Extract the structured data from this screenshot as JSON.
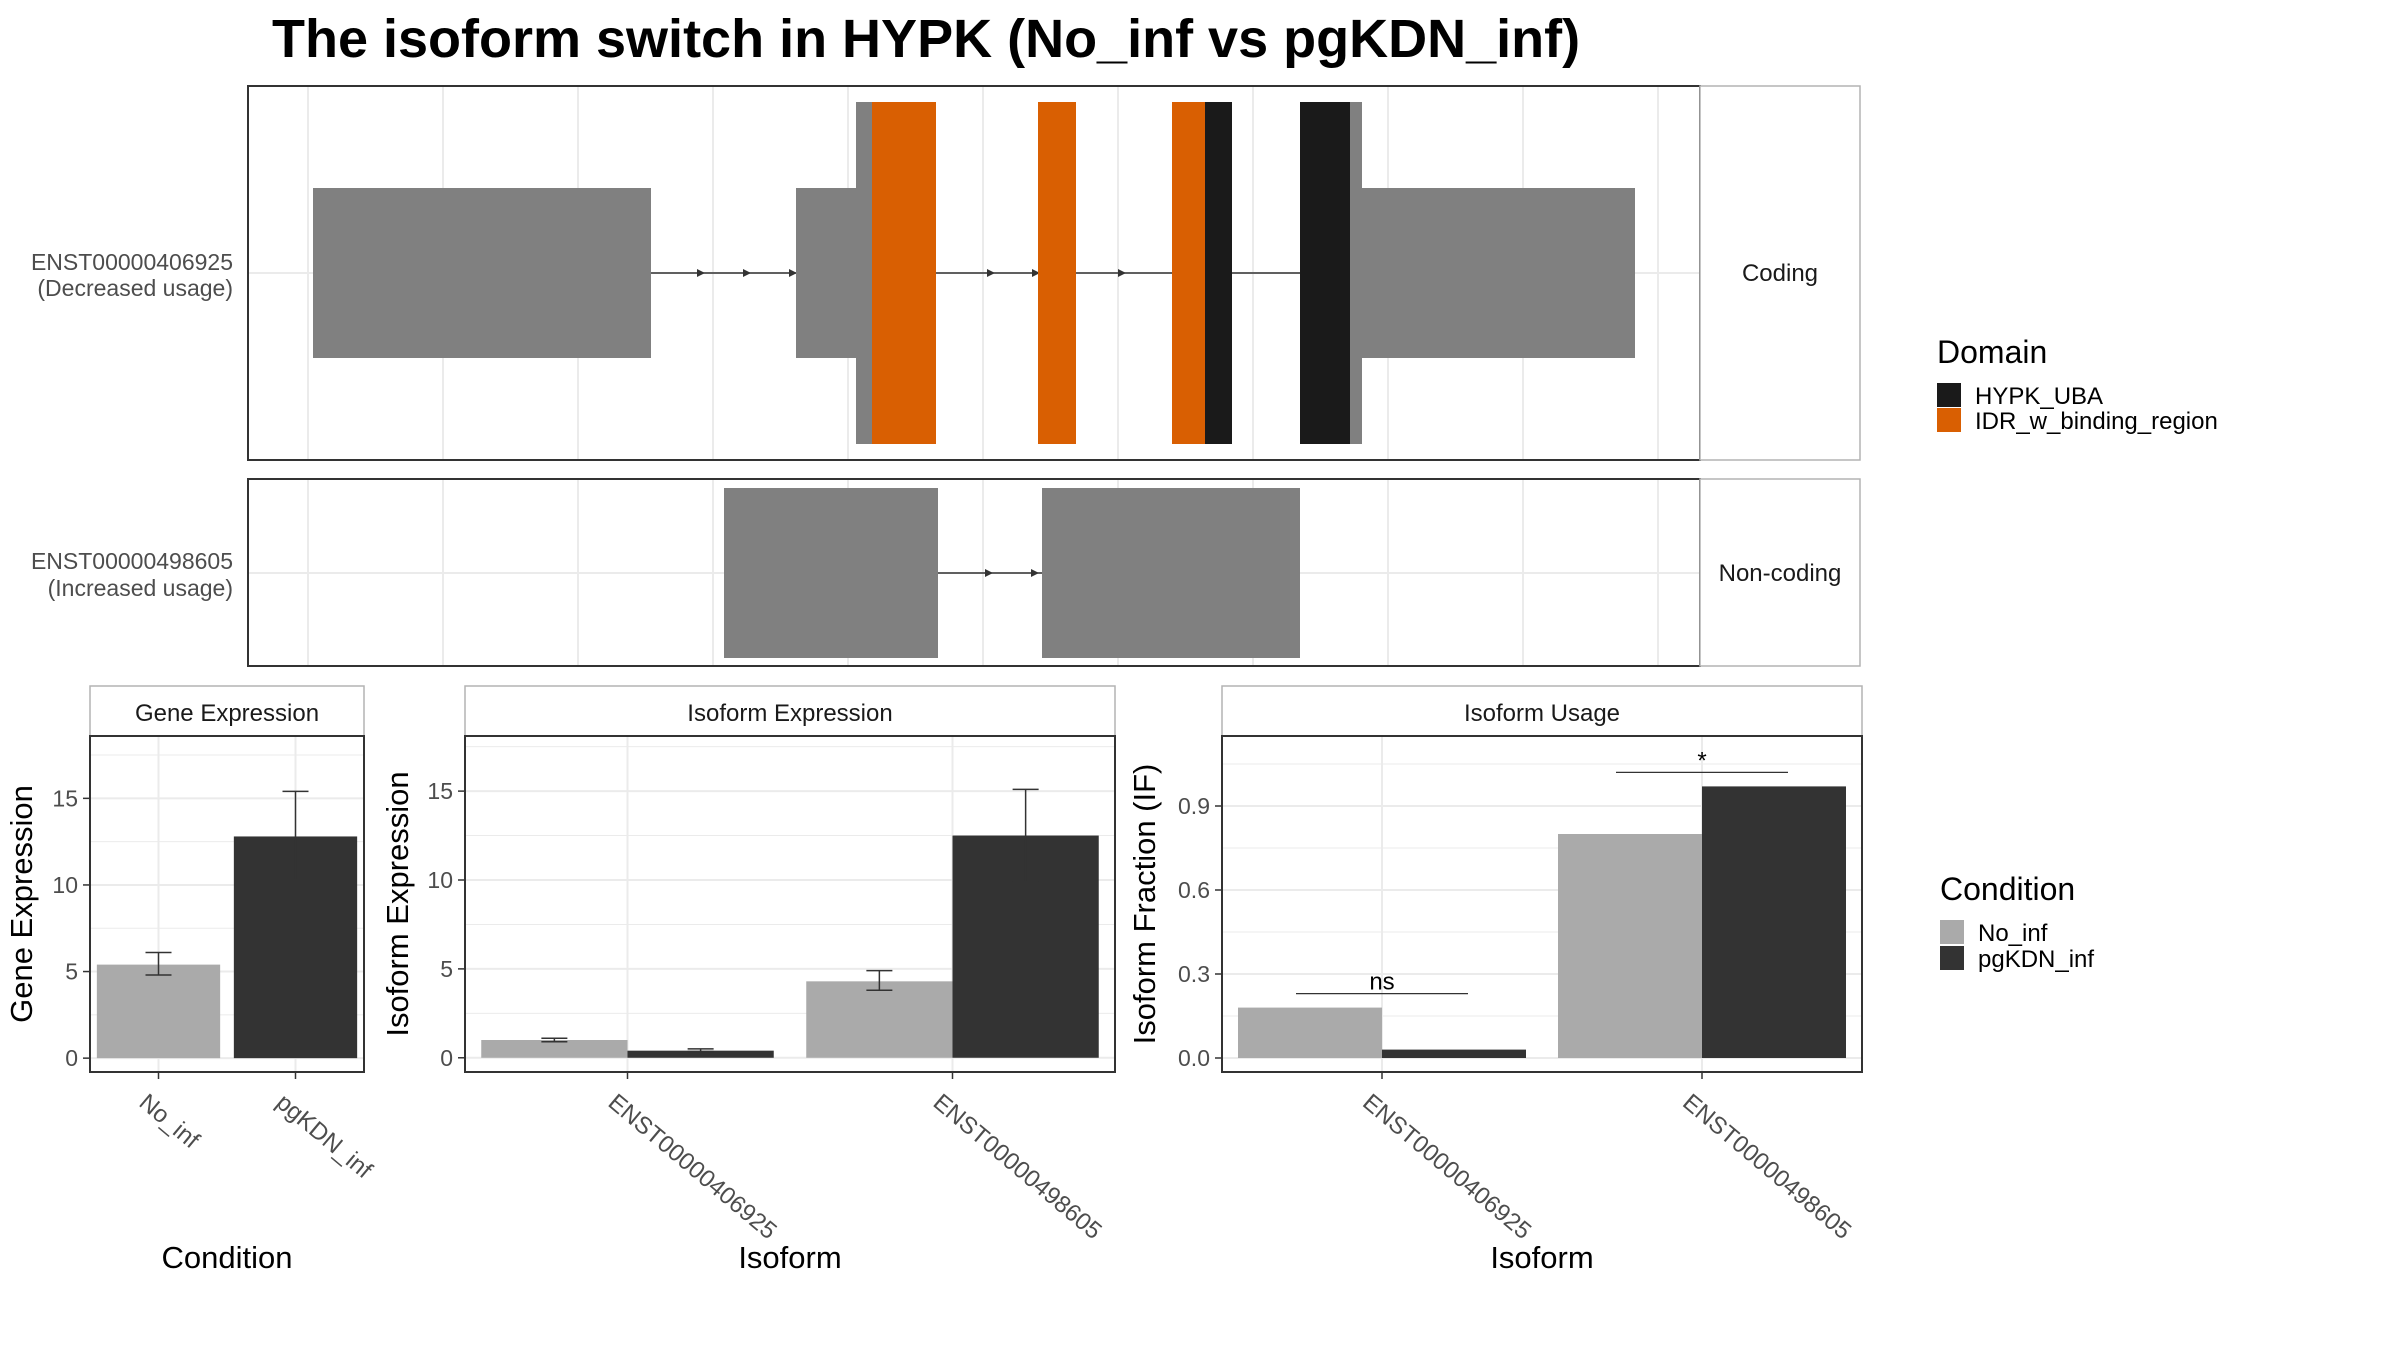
{
  "title": "The isoform switch in HYPK (No_inf vs pgKDN_inf)",
  "colors": {
    "exon": "#808080",
    "HYPK_UBA": "#1a1a1a",
    "IDR_w_binding_region": "#d95f02",
    "No_inf": "#aaaaaa",
    "pgKDN_inf": "#333333",
    "grid": "#ebebeb",
    "panel_border": "#333333",
    "strip_border": "#b3b3b3",
    "text_dark": "#1a1a1a",
    "tick_text": "#4d4d4d"
  },
  "structure": {
    "isoforms": [
      {
        "id": "ENST00000406925",
        "usage_label": "(Decreased usage)",
        "strip": "Coding"
      },
      {
        "id": "ENST00000498605",
        "usage_label": "(Increased usage)",
        "strip": "Non-coding"
      }
    ]
  },
  "domain_legend": {
    "title": "Domain",
    "items": [
      {
        "label": "HYPK_UBA",
        "color_key": "HYPK_UBA"
      },
      {
        "label": "IDR_w_binding_region",
        "color_key": "IDR_w_binding_region"
      }
    ]
  },
  "condition_legend": {
    "title": "Condition",
    "items": [
      {
        "label": "No_inf",
        "color_key": "No_inf"
      },
      {
        "label": "pgKDN_inf",
        "color_key": "pgKDN_inf"
      }
    ]
  },
  "chart_data": [
    {
      "type": "bar",
      "strip": "Gene Expression",
      "xlabel": "Condition",
      "ylabel": "Gene Expression",
      "ylim": [
        -0.8,
        18.6
      ],
      "yticks": [
        0,
        5,
        10,
        15
      ],
      "categories": [
        "No_inf",
        "pgKDN_inf"
      ],
      "series": [
        {
          "name": "No_inf",
          "values": [
            5.4,
            null
          ],
          "err_low": [
            4.8,
            null
          ],
          "err_high": [
            6.1,
            null
          ]
        },
        {
          "name": "pgKDN_inf",
          "values": [
            null,
            12.8
          ],
          "err_low": [
            null,
            10.3
          ],
          "err_high": [
            null,
            15.4
          ]
        }
      ]
    },
    {
      "type": "bar",
      "strip": "Isoform Expression",
      "xlabel": "Isoform",
      "ylabel": "Isoform Expression",
      "ylim": [
        -0.8,
        18.1
      ],
      "yticks": [
        0,
        5,
        10,
        15
      ],
      "categories": [
        "ENST00000406925",
        "ENST00000498605"
      ],
      "series": [
        {
          "name": "No_inf",
          "values": [
            1.0,
            4.3
          ],
          "err_low": [
            0.9,
            3.8
          ],
          "err_high": [
            1.1,
            4.9
          ]
        },
        {
          "name": "pgKDN_inf",
          "values": [
            0.4,
            12.5
          ],
          "err_low": [
            0.35,
            9.9
          ],
          "err_high": [
            0.5,
            15.1
          ]
        }
      ]
    },
    {
      "type": "bar",
      "strip": "Isoform Usage",
      "xlabel": "Isoform",
      "ylabel": "Isoform Fraction (IF)",
      "ylim": [
        -0.05,
        1.15
      ],
      "yticks": [
        0.0,
        0.3,
        0.6,
        0.9
      ],
      "ytick_labels": [
        "0.0",
        "0.3",
        "0.6",
        "0.9"
      ],
      "categories": [
        "ENST00000406925",
        "ENST00000498605"
      ],
      "series": [
        {
          "name": "No_inf",
          "values": [
            0.18,
            0.8
          ]
        },
        {
          "name": "pgKDN_inf",
          "values": [
            0.03,
            0.97
          ]
        }
      ],
      "annotations": [
        {
          "category_index": 0,
          "text": "ns",
          "y": 0.23
        },
        {
          "category_index": 1,
          "text": "*",
          "y": 1.02
        }
      ]
    }
  ]
}
